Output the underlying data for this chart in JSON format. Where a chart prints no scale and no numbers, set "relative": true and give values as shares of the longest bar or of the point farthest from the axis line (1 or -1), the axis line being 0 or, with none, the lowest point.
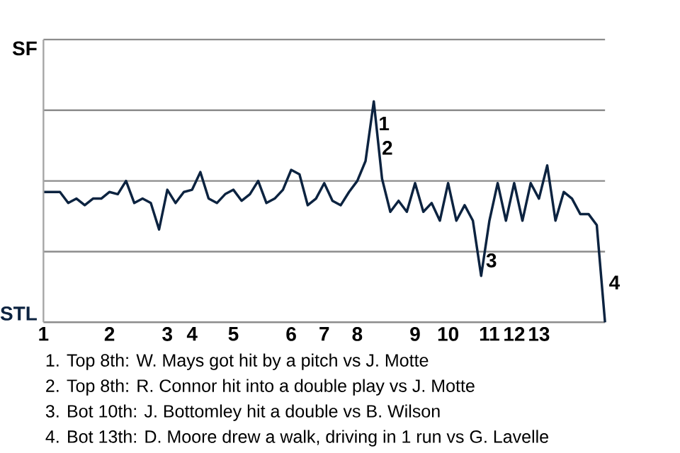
{
  "chart_data": {
    "type": "line",
    "relative": true,
    "categories": [
      "1",
      null,
      null,
      null,
      null,
      null,
      null,
      null,
      "2",
      null,
      null,
      null,
      null,
      null,
      null,
      "3",
      null,
      null,
      "4",
      null,
      null,
      null,
      null,
      "5",
      null,
      null,
      null,
      null,
      null,
      null,
      "6",
      null,
      null,
      null,
      "7",
      null,
      null,
      null,
      "8",
      null,
      null,
      null,
      null,
      null,
      null,
      "9",
      null,
      null,
      null,
      "10",
      null,
      null,
      null,
      null,
      "11",
      null,
      null,
      "12",
      null,
      null,
      "13",
      null,
      null,
      null,
      null,
      null,
      null,
      null,
      null
    ],
    "series": [
      {
        "color": "#0c2340",
        "values": [
          0.59,
          0.59,
          0.59,
          0.54,
          0.56,
          0.53,
          0.56,
          0.56,
          0.59,
          0.58,
          0.64,
          0.54,
          0.56,
          0.54,
          0.42,
          0.6,
          0.54,
          0.59,
          0.6,
          0.68,
          0.56,
          0.54,
          0.58,
          0.6,
          0.55,
          0.58,
          0.64,
          0.54,
          0.56,
          0.6,
          0.69,
          0.67,
          0.53,
          0.56,
          0.63,
          0.55,
          0.53,
          0.59,
          0.64,
          0.73,
          1,
          0.65,
          0.5,
          0.55,
          0.5,
          0.63,
          0.5,
          0.54,
          0.46,
          0.63,
          0.46,
          0.53,
          0.46,
          0.21,
          0.46,
          0.63,
          0.46,
          0.63,
          0.46,
          0.63,
          0.56,
          0.71,
          0.46,
          0.59,
          0.56,
          0.49,
          0.49,
          0.44,
          0
        ]
      }
    ],
    "grid": "y",
    "annotations": [
      "SF",
      "STL",
      {
        "text": "1"
      },
      {
        "text": "2"
      },
      {
        "text": "3"
      },
      {
        "text": "4"
      },
      "1. Top 8th: W. Mays got hit by a pitch vs J. Motte",
      "2. Top 8th: R. Connor hit into a double play vs J. Motte",
      "3. Bot 10th: J. Bottomley hit a double vs B. Wilson",
      "4. Bot 13th: D. Moore drew a walk, driving in 1 run vs G. Lavelle"
    ]
  }
}
